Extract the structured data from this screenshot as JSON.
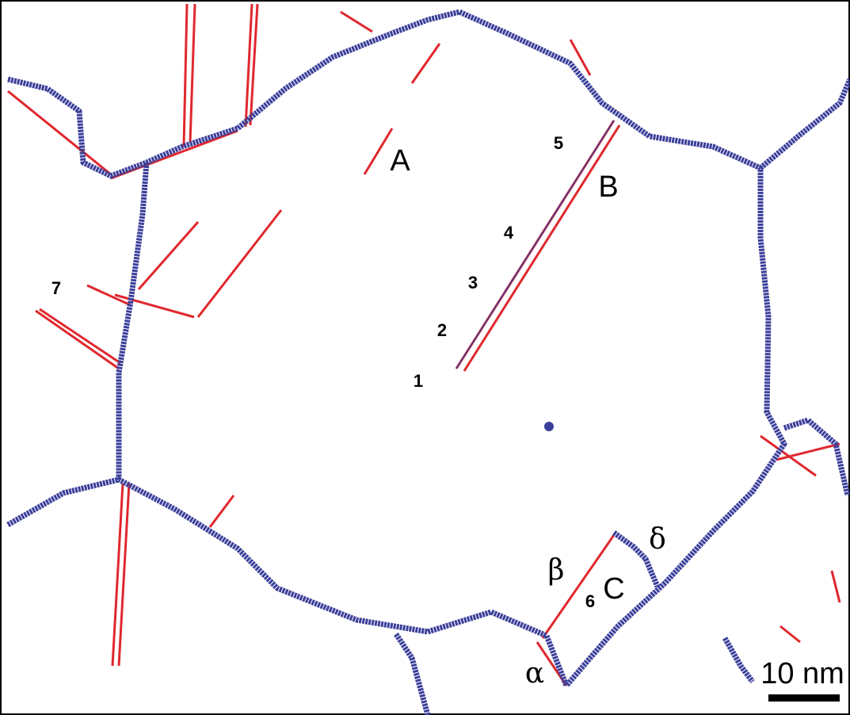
{
  "labels": {
    "A": "A",
    "B": "B",
    "C": "C",
    "n1": "1",
    "n2": "2",
    "n3": "3",
    "n4": "4",
    "n5": "5",
    "n6": "6",
    "n7": "7",
    "alpha": "α",
    "beta": "β",
    "delta": "δ"
  },
  "scale_bar": {
    "label": "10 nm"
  }
}
